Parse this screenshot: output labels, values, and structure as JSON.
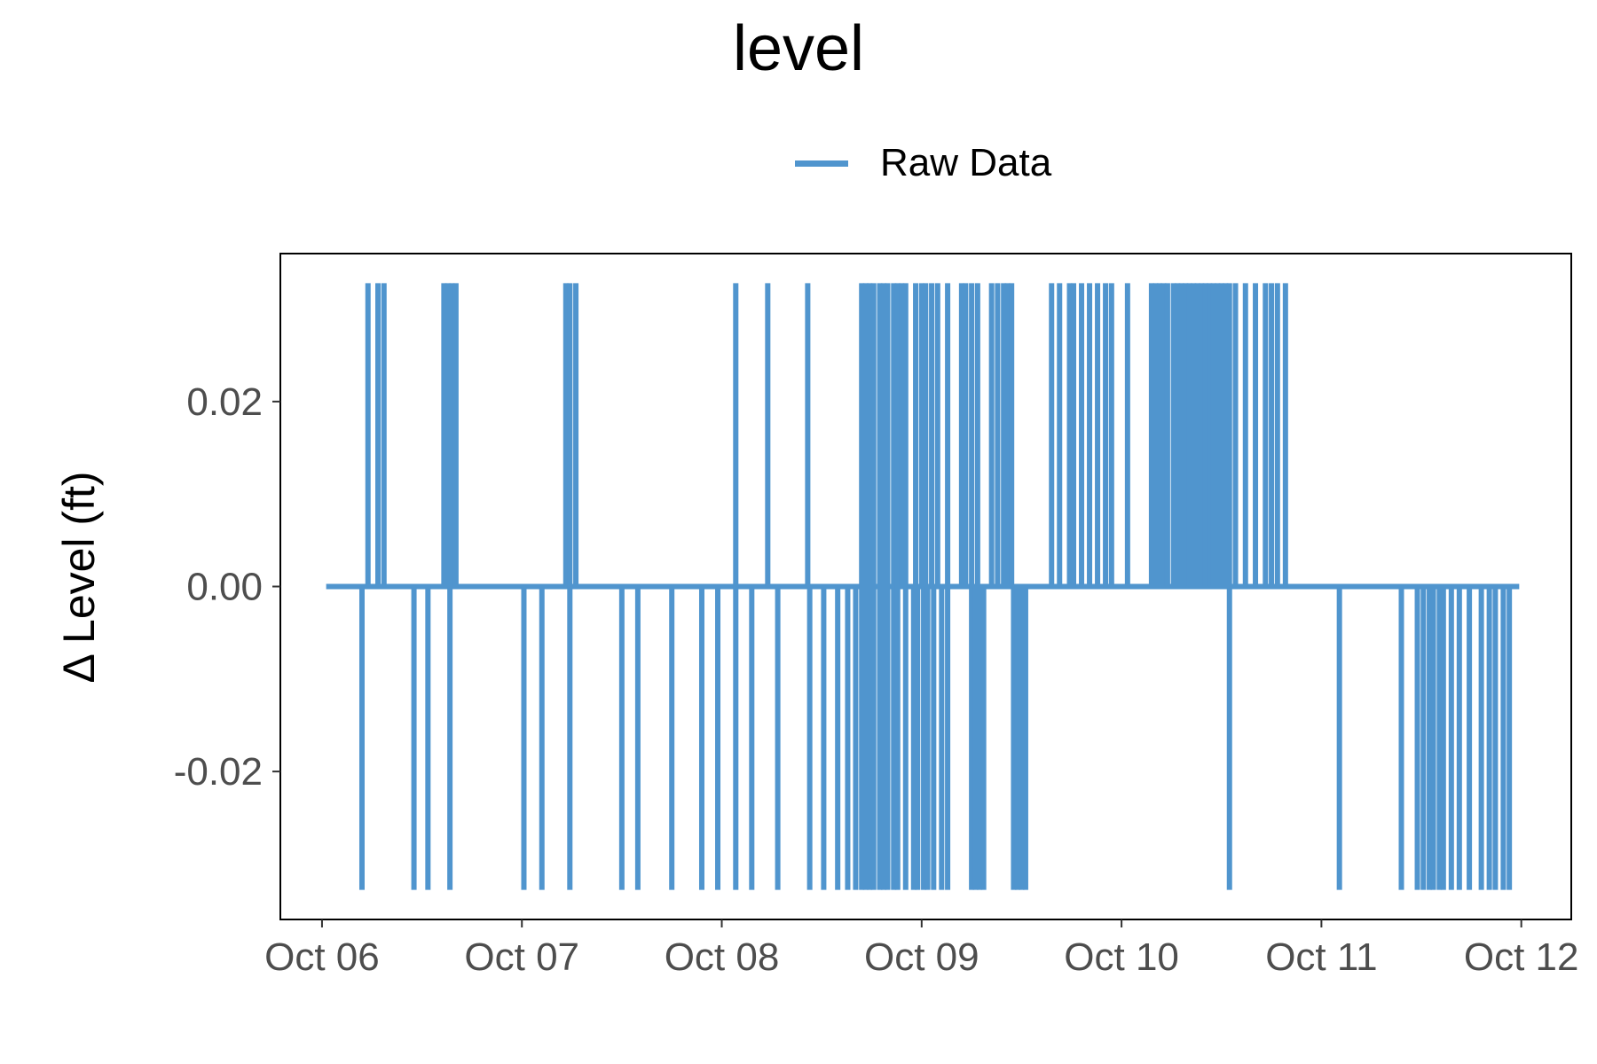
{
  "chart_data": {
    "type": "line",
    "title": "level",
    "xlabel": "",
    "ylabel": "Δ Level (ft)",
    "x_tick_labels": [
      "Oct 06",
      "Oct 07",
      "Oct 08",
      "Oct 09",
      "Oct 10",
      "Oct 11",
      "Oct 12"
    ],
    "x_range": [
      "2023-10-05T19:00",
      "2023-10-12T06:00"
    ],
    "y_tick_labels": [
      "-0.02",
      "0.00",
      "0.02"
    ],
    "y_ticks": [
      -0.02,
      0.0,
      0.02
    ],
    "ylim": [
      -0.036,
      0.036
    ],
    "grid": false,
    "legend_position": "top",
    "series": [
      {
        "name": "Raw Data",
        "color": "#5095CE",
        "x_start": "2023-10-06T00:30",
        "x_end": "2023-10-11T23:45",
        "baseline": 0.0,
        "step_amplitude": 0.0328,
        "positive_spikes_day": [
          0.23,
          0.28,
          0.31,
          0.61,
          0.63,
          0.65,
          0.67,
          1.22,
          1.24,
          1.27,
          2.07,
          2.23,
          2.43,
          2.7,
          2.72,
          2.74,
          2.76,
          2.79,
          2.81,
          2.83,
          2.86,
          2.88,
          2.9,
          2.92,
          2.97,
          3.0,
          3.02,
          3.05,
          3.08,
          3.13,
          3.2,
          3.22,
          3.25,
          3.28,
          3.35,
          3.38,
          3.41,
          3.43,
          3.45,
          3.65,
          3.69,
          3.74,
          3.76,
          3.8,
          3.84,
          3.88,
          3.92,
          3.95,
          4.03,
          4.15,
          4.17,
          4.19,
          4.21,
          4.23,
          4.26,
          4.28,
          4.3,
          4.32,
          4.34,
          4.36,
          4.38,
          4.4,
          4.42,
          4.44,
          4.46,
          4.48,
          4.5,
          4.52,
          4.54,
          4.57,
          4.62,
          4.67,
          4.72,
          4.75,
          4.78,
          4.82
        ],
        "negative_spikes_day": [
          0.2,
          0.46,
          0.53,
          0.64,
          1.01,
          1.1,
          1.24,
          1.5,
          1.58,
          1.75,
          1.9,
          1.98,
          2.07,
          2.15,
          2.28,
          2.44,
          2.51,
          2.58,
          2.63,
          2.67,
          2.7,
          2.72,
          2.74,
          2.76,
          2.79,
          2.81,
          2.83,
          2.86,
          2.88,
          2.92,
          2.96,
          2.98,
          3.01,
          3.03,
          3.06,
          3.1,
          3.13,
          3.25,
          3.27,
          3.29,
          3.31,
          3.46,
          3.48,
          3.5,
          3.52,
          4.54,
          5.09,
          5.4,
          5.48,
          5.51,
          5.54,
          5.56,
          5.59,
          5.61,
          5.65,
          5.69,
          5.74,
          5.8,
          5.84,
          5.87,
          5.91,
          5.94
        ]
      }
    ]
  }
}
